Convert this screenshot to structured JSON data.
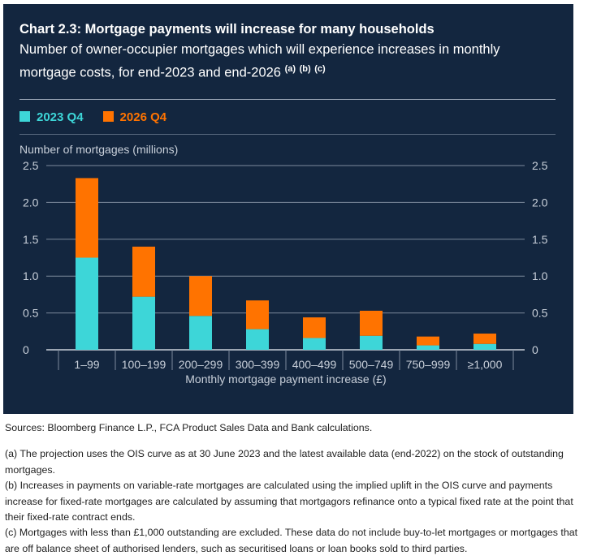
{
  "header": {
    "title": "Chart 2.3: Mortgage payments will increase for many households",
    "subtitle_line1": "Number of owner-occupier mortgages which will experience increases in monthly",
    "subtitle_line2": "mortgage costs, for end-2023 and end-2026",
    "footnote_refs": [
      "(a)",
      "(b)",
      "(c)"
    ]
  },
  "chart_data": {
    "type": "bar",
    "stacked": true,
    "title": "Chart 2.3: Mortgage payments will increase for many households",
    "ylabel": "Number of mortgages (millions)",
    "xlabel": "Monthly mortgage payment increase (£)",
    "ylim": [
      0,
      2.5
    ],
    "yticks": [
      "0",
      "0.5",
      "1.0",
      "1.5",
      "2.0",
      "2.5"
    ],
    "grid": true,
    "legend_position": "top-left",
    "categories": [
      "1–99",
      "100–199",
      "200–299",
      "300–399",
      "400–499",
      "500–749",
      "750–999",
      "≥1,000"
    ],
    "series": [
      {
        "name": "2023 Q4",
        "color": "#3dd6d8",
        "values": [
          1.25,
          0.72,
          0.46,
          0.28,
          0.16,
          0.19,
          0.06,
          0.08
        ]
      },
      {
        "name": "2026 Q4",
        "color": "#ff7300",
        "values": [
          1.08,
          0.68,
          0.54,
          0.39,
          0.28,
          0.34,
          0.12,
          0.14
        ]
      }
    ]
  },
  "notes": {
    "sources": "Sources: Bloomberg Finance L.P., FCA Product Sales Data and Bank calculations.",
    "a": "(a) The projection uses the OIS curve as at 30 June 2023 and the latest available data (end-2022) on the stock of outstanding mortgages.",
    "b": "(b) Increases in payments on variable-rate mortgages are calculated using the implied uplift in the OIS curve and payments increase for fixed-rate mortgages are calculated by assuming that mortgagors refinance onto a typical fixed rate at the point that their fixed-rate contract ends.",
    "c": "(c) Mortgages with less than £1,000 outstanding are excluded. These data do not include buy-to-let mortgages or mortgages that are off balance sheet of authorised lenders, such as securitised loans or loan books sold to third parties."
  }
}
